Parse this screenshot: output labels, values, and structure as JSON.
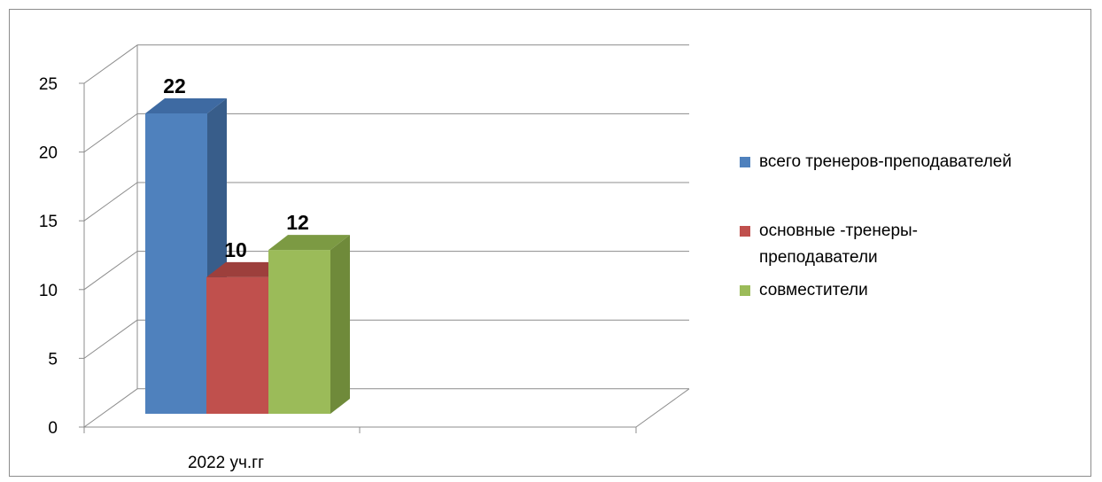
{
  "chart_data": {
    "type": "bar",
    "title": "",
    "xlabel": "",
    "ylabel": "",
    "categories": [
      "2022 уч.гг"
    ],
    "series": [
      {
        "name": "всего тренеров-преподавателей",
        "values": [
          22
        ],
        "color": "#4F81BD",
        "side_color": "#385D8A",
        "top_color": "#3E6AA2"
      },
      {
        "name": "основные -тренеры-преподаватели",
        "values": [
          10
        ],
        "color": "#C0504D",
        "side_color": "#8C3836",
        "top_color": "#9D3F3C"
      },
      {
        "name": "совместители",
        "values": [
          12
        ],
        "color": "#9BBB59",
        "side_color": "#6F8A3A",
        "top_color": "#7C9A43"
      }
    ],
    "yticks": [
      "0",
      "5",
      "10",
      "15",
      "20",
      "25"
    ],
    "ylim": [
      0,
      25
    ],
    "grid": true,
    "legend_position": "right",
    "data_labels": [
      "22",
      "10",
      "12"
    ]
  }
}
